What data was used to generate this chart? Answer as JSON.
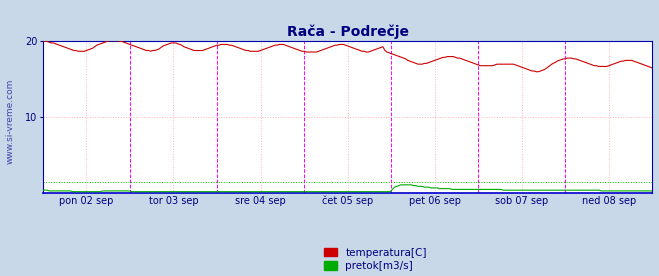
{
  "title": "Rača - Podrečje",
  "title_color": "#000080",
  "background_color": "#c8d8e8",
  "plot_bg_color": "#ffffff",
  "grid_color": "#ffb0b0",
  "watermark": "www.si-vreme.com",
  "watermark_color": "#4444aa",
  "tick_color": "#000080",
  "xlim": [
    0,
    336
  ],
  "ylim_temp": [
    0,
    20
  ],
  "yticks_temp": [
    10,
    20
  ],
  "x_day_labels": [
    "pon 02 sep",
    "tor 03 sep",
    "sre 04 sep",
    "čet 05 sep",
    "pet 06 sep",
    "sob 07 sep",
    "ned 08 sep"
  ],
  "x_day_positions": [
    24,
    72,
    120,
    168,
    216,
    264,
    312
  ],
  "vline_positions": [
    48,
    96,
    144,
    192,
    240,
    288
  ],
  "vline_color": "#ff00ff",
  "temp_color": "#cc0000",
  "flow_color": "#00aa00",
  "hline_temp_color": "#ffaaaa",
  "hline_flow_color": "#00cc00",
  "legend_temp_label": "temperatura[C]",
  "legend_flow_label": "pretok[m3/s]",
  "border_color": "#0000aa",
  "axis_bottom_color": "#0000cc",
  "temp_data": [
    20.1,
    20.0,
    20.0,
    19.9,
    19.8,
    19.8,
    19.7,
    19.6,
    19.5,
    19.4,
    19.3,
    19.2,
    19.1,
    19.0,
    18.9,
    18.8,
    18.8,
    18.7,
    18.7,
    18.7,
    18.7,
    18.8,
    18.9,
    19.0,
    19.1,
    19.3,
    19.5,
    19.6,
    19.7,
    19.8,
    19.9,
    20.0,
    20.1,
    20.1,
    20.1,
    20.1,
    20.1,
    20.0,
    20.0,
    19.9,
    19.8,
    19.7,
    19.6,
    19.5,
    19.4,
    19.3,
    19.2,
    19.1,
    19.0,
    18.9,
    18.8,
    18.8,
    18.7,
    18.8,
    18.8,
    18.9,
    19.0,
    19.2,
    19.4,
    19.5,
    19.6,
    19.7,
    19.8,
    19.8,
    19.8,
    19.7,
    19.6,
    19.5,
    19.3,
    19.2,
    19.1,
    19.0,
    18.9,
    18.8,
    18.8,
    18.8,
    18.8,
    18.8,
    18.9,
    19.0,
    19.1,
    19.2,
    19.3,
    19.4,
    19.5,
    19.5,
    19.6,
    19.6,
    19.6,
    19.6,
    19.5,
    19.5,
    19.4,
    19.3,
    19.2,
    19.1,
    19.0,
    18.9,
    18.8,
    18.8,
    18.7,
    18.7,
    18.7,
    18.7,
    18.7,
    18.8,
    18.9,
    19.0,
    19.1,
    19.2,
    19.3,
    19.4,
    19.5,
    19.5,
    19.6,
    19.6,
    19.6,
    19.5,
    19.4,
    19.3,
    19.2,
    19.1,
    19.0,
    18.9,
    18.8,
    18.7,
    18.7,
    18.6,
    18.6,
    18.6,
    18.6,
    18.6,
    18.6,
    18.7,
    18.8,
    18.9,
    19.0,
    19.1,
    19.2,
    19.3,
    19.4,
    19.5,
    19.5,
    19.6,
    19.6,
    19.6,
    19.5,
    19.4,
    19.3,
    19.2,
    19.1,
    19.0,
    18.9,
    18.8,
    18.7,
    18.7,
    18.6,
    18.6,
    18.7,
    18.8,
    18.9,
    19.0,
    19.1,
    19.2,
    19.3,
    18.8,
    18.6,
    18.5,
    18.4,
    18.3,
    18.2,
    18.1,
    18.0,
    17.9,
    17.8,
    17.7,
    17.5,
    17.4,
    17.3,
    17.2,
    17.1,
    17.0,
    17.0,
    17.0,
    17.1,
    17.1,
    17.2,
    17.3,
    17.4,
    17.5,
    17.6,
    17.7,
    17.8,
    17.9,
    17.9,
    18.0,
    18.0,
    18.0,
    18.0,
    17.9,
    17.8,
    17.8,
    17.7,
    17.6,
    17.5,
    17.4,
    17.3,
    17.2,
    17.1,
    17.0,
    16.9,
    16.8,
    16.8,
    16.8,
    16.8,
    16.8,
    16.8,
    16.8,
    16.9,
    17.0,
    17.0,
    17.0,
    17.0,
    17.0,
    17.0,
    17.0,
    17.0,
    17.0,
    16.9,
    16.8,
    16.7,
    16.6,
    16.5,
    16.4,
    16.3,
    16.2,
    16.1,
    16.1,
    16.0,
    16.0,
    16.1,
    16.2,
    16.3,
    16.5,
    16.7,
    16.9,
    17.1,
    17.2,
    17.4,
    17.5,
    17.6,
    17.7,
    17.7,
    17.8,
    17.8,
    17.8,
    17.7,
    17.7,
    17.6,
    17.5,
    17.4,
    17.3,
    17.2,
    17.1,
    17.0,
    16.9,
    16.8,
    16.8,
    16.7,
    16.7,
    16.7,
    16.7,
    16.7,
    16.8,
    16.9,
    17.0,
    17.1,
    17.2,
    17.3,
    17.4,
    17.4,
    17.5,
    17.5,
    17.5,
    17.5,
    17.4,
    17.3,
    17.2,
    17.1,
    17.0,
    16.9,
    16.8,
    16.7,
    16.6,
    16.5
  ],
  "flow_data": [
    0.4,
    0.4,
    0.4,
    0.3,
    0.3,
    0.3,
    0.3,
    0.3,
    0.3,
    0.3,
    0.3,
    0.3,
    0.3,
    0.3,
    0.2,
    0.2,
    0.2,
    0.2,
    0.2,
    0.2,
    0.2,
    0.2,
    0.2,
    0.2,
    0.2,
    0.2,
    0.2,
    0.2,
    0.3,
    0.3,
    0.3,
    0.3,
    0.3,
    0.3,
    0.3,
    0.3,
    0.3,
    0.3,
    0.3,
    0.3,
    0.3,
    0.3,
    0.2,
    0.2,
    0.2,
    0.2,
    0.2,
    0.2,
    0.2,
    0.2,
    0.2,
    0.2,
    0.2,
    0.2,
    0.2,
    0.2,
    0.2,
    0.2,
    0.2,
    0.2,
    0.2,
    0.2,
    0.2,
    0.2,
    0.2,
    0.2,
    0.2,
    0.2,
    0.2,
    0.2,
    0.2,
    0.2,
    0.2,
    0.2,
    0.2,
    0.2,
    0.2,
    0.2,
    0.2,
    0.2,
    0.2,
    0.2,
    0.2,
    0.2,
    0.2,
    0.2,
    0.2,
    0.2,
    0.2,
    0.2,
    0.2,
    0.2,
    0.2,
    0.2,
    0.2,
    0.2,
    0.2,
    0.2,
    0.2,
    0.2,
    0.2,
    0.2,
    0.2,
    0.2,
    0.2,
    0.2,
    0.2,
    0.2,
    0.2,
    0.2,
    0.2,
    0.2,
    0.2,
    0.2,
    0.2,
    0.2,
    0.2,
    0.2,
    0.2,
    0.2,
    0.2,
    0.2,
    0.2,
    0.2,
    0.2,
    0.2,
    0.2,
    0.2,
    0.2,
    0.2,
    0.2,
    0.2,
    0.2,
    0.2,
    0.2,
    0.2,
    0.2,
    0.2,
    0.2,
    0.2,
    0.2,
    0.2,
    0.2,
    0.2,
    0.2,
    0.2,
    0.2,
    0.2,
    0.2,
    0.2,
    0.2,
    0.2,
    0.2,
    0.2,
    0.2,
    0.2,
    0.2,
    0.2,
    0.2,
    0.2,
    0.2,
    0.2,
    0.2,
    0.2,
    0.5,
    0.8,
    0.9,
    1.0,
    1.1,
    1.1,
    1.1,
    1.1,
    1.1,
    1.1,
    1.0,
    1.0,
    0.9,
    0.9,
    0.9,
    0.8,
    0.8,
    0.8,
    0.7,
    0.7,
    0.7,
    0.7,
    0.6,
    0.6,
    0.6,
    0.6,
    0.6,
    0.6,
    0.5,
    0.5,
    0.5,
    0.5,
    0.5,
    0.5,
    0.5,
    0.5,
    0.5,
    0.5,
    0.5,
    0.5,
    0.5,
    0.5,
    0.5,
    0.5,
    0.5,
    0.5,
    0.5,
    0.5,
    0.5,
    0.5,
    0.5,
    0.5,
    0.4,
    0.4,
    0.4,
    0.4,
    0.4,
    0.4,
    0.4,
    0.4,
    0.4,
    0.4,
    0.4,
    0.4,
    0.4,
    0.4,
    0.4,
    0.4,
    0.4,
    0.4,
    0.4,
    0.4,
    0.4,
    0.4,
    0.4,
    0.4,
    0.4,
    0.4,
    0.4,
    0.4,
    0.4,
    0.4,
    0.4,
    0.4,
    0.4,
    0.4,
    0.4,
    0.4,
    0.4,
    0.4,
    0.4,
    0.4,
    0.4,
    0.4,
    0.4,
    0.4,
    0.4,
    0.4,
    0.3,
    0.3,
    0.3,
    0.3,
    0.3,
    0.3,
    0.3,
    0.3,
    0.3,
    0.3,
    0.3,
    0.3,
    0.3,
    0.3,
    0.3,
    0.3,
    0.3,
    0.3,
    0.3,
    0.3,
    0.3,
    0.3,
    0.3,
    0.3,
    0.3
  ]
}
